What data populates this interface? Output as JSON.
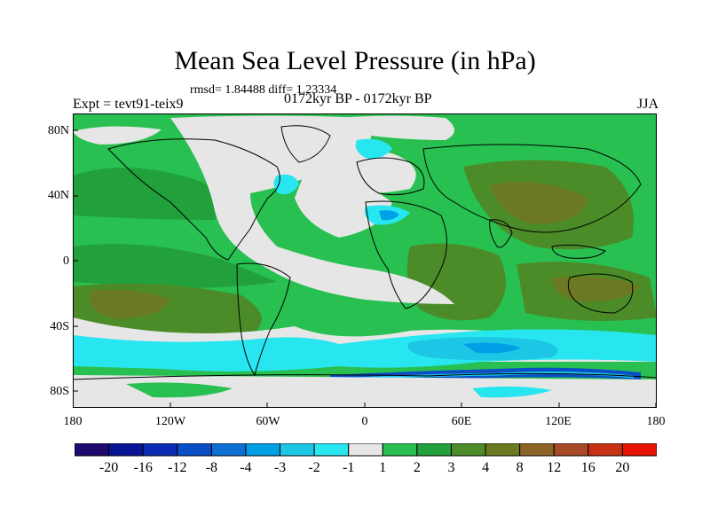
{
  "title": "Mean Sea Level Pressure (in hPa)",
  "stats": "rmsd= 1.84488 diff= 1.23334",
  "experiment": "Expt = tevt91-teix9",
  "period": "0172kyr BP - 0172kyr BP",
  "season": "JJA",
  "lat_labels": [
    "80N",
    "40N",
    "0",
    "40S",
    "80S"
  ],
  "lon_labels": [
    "180",
    "120W",
    "60W",
    "0",
    "60E",
    "120E",
    "180"
  ],
  "colorbar": {
    "labels": [
      "-20",
      "-16",
      "-12",
      "-8",
      "-4",
      "-3",
      "-2",
      "-1",
      "1",
      "2",
      "3",
      "4",
      "8",
      "12",
      "16",
      "20"
    ],
    "colors": [
      "#1e0a6e",
      "#0a1496",
      "#0a2cb4",
      "#0a4ec8",
      "#0d6fd4",
      "#00a0e6",
      "#1ec6e6",
      "#28e6f0",
      "#e6e6e6",
      "#28c050",
      "#22a03c",
      "#4b8c28",
      "#6b7a22",
      "#8c6428",
      "#a84a28",
      "#c83214",
      "#e61400"
    ]
  },
  "colors": {
    "land_outline": "#000000",
    "neutral": "#e6e6e6",
    "pos_1": "#28c050",
    "pos_2": "#22a03c",
    "pos_3": "#4b8c28",
    "pos_4": "#6b7a22",
    "pos_5": "#8c6428",
    "neg_1": "#28e6f0",
    "neg_2": "#1ec6e6",
    "neg_3": "#00a0e6",
    "neg_4": "#0a4ec8"
  }
}
